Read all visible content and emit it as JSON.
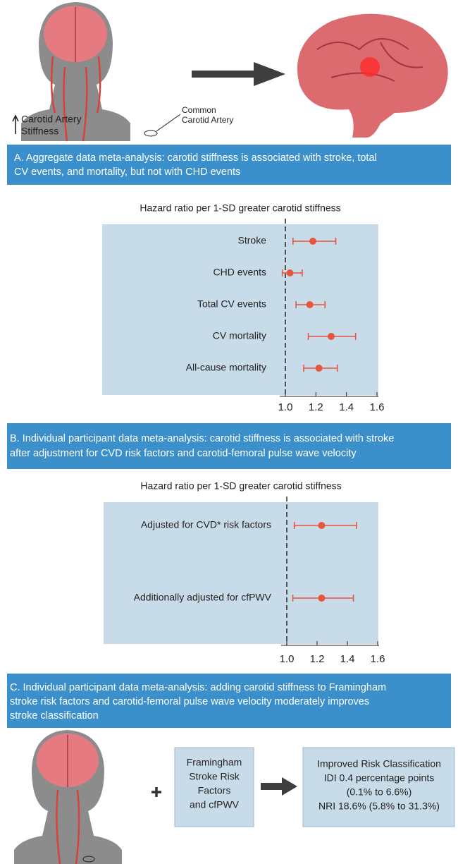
{
  "header": {
    "left_label": [
      "Carotid Artery",
      "Stiffness"
    ],
    "pointer_label": [
      "Common",
      "Carotid Artery"
    ]
  },
  "panels": [
    {
      "lines": [
        "A. Aggregate data meta-analysis: carotid stiffness is associated with stroke, total",
        "CV events, and mortality, but not with CHD events"
      ]
    },
    {
      "lines": [
        "B. Individual participant data meta-analysis: carotid stiffness is associated with stroke",
        "after adjustment for CVD risk factors and carotid-femoral pulse wave velocity"
      ]
    },
    {
      "lines": [
        "C. Individual participant data meta-analysis: adding carotid stiffness to Framingham",
        "stroke risk factors and carotid-femoral pulse wave velocity moderately improves",
        "stroke classification"
      ]
    }
  ],
  "chart_data": [
    {
      "type": "forest",
      "title": "Hazard ratio per 1-SD greater carotid stiffness",
      "categories": [
        "Stroke",
        "CHD events",
        "Total CV events",
        "CV mortality",
        "All-cause mortality"
      ],
      "values": [
        1.18,
        1.03,
        1.16,
        1.3,
        1.22
      ],
      "ci_low": [
        1.05,
        0.98,
        1.07,
        1.15,
        1.12
      ],
      "ci_high": [
        1.33,
        1.11,
        1.26,
        1.46,
        1.34
      ],
      "color": "#e8553e",
      "reference_line": 1,
      "xlim": [
        1,
        1.6
      ],
      "xticks": [
        {
          "value": 1,
          "label": "1.0"
        },
        1.2,
        1.4,
        1.6
      ]
    },
    {
      "type": "forest",
      "title": "Hazard ratio per 1-SD greater carotid stiffness",
      "categories": [
        "Adjusted for CVD* risk factors",
        "Additionally adjusted for cfPWV"
      ],
      "values": [
        1.23,
        1.23
      ],
      "ci_low": [
        1.05,
        1.04
      ],
      "ci_high": [
        1.46,
        1.44
      ],
      "color": "#e8553e",
      "reference_line": 1,
      "xlim": [
        1,
        1.6
      ],
      "xticks": [
        {
          "value": 1,
          "label": "1.0"
        },
        1.2,
        1.4,
        1.6
      ]
    }
  ],
  "footer": {
    "inputs": [
      "Framingham",
      "Stroke Risk",
      "Factors",
      "and cfPWV"
    ],
    "result": [
      "Improved Risk Classification",
      "IDI 0.4 percentage points",
      "(0.1% to 6.6%)",
      "NRI 18.6% (5.8% to 31.3%)"
    ]
  }
}
